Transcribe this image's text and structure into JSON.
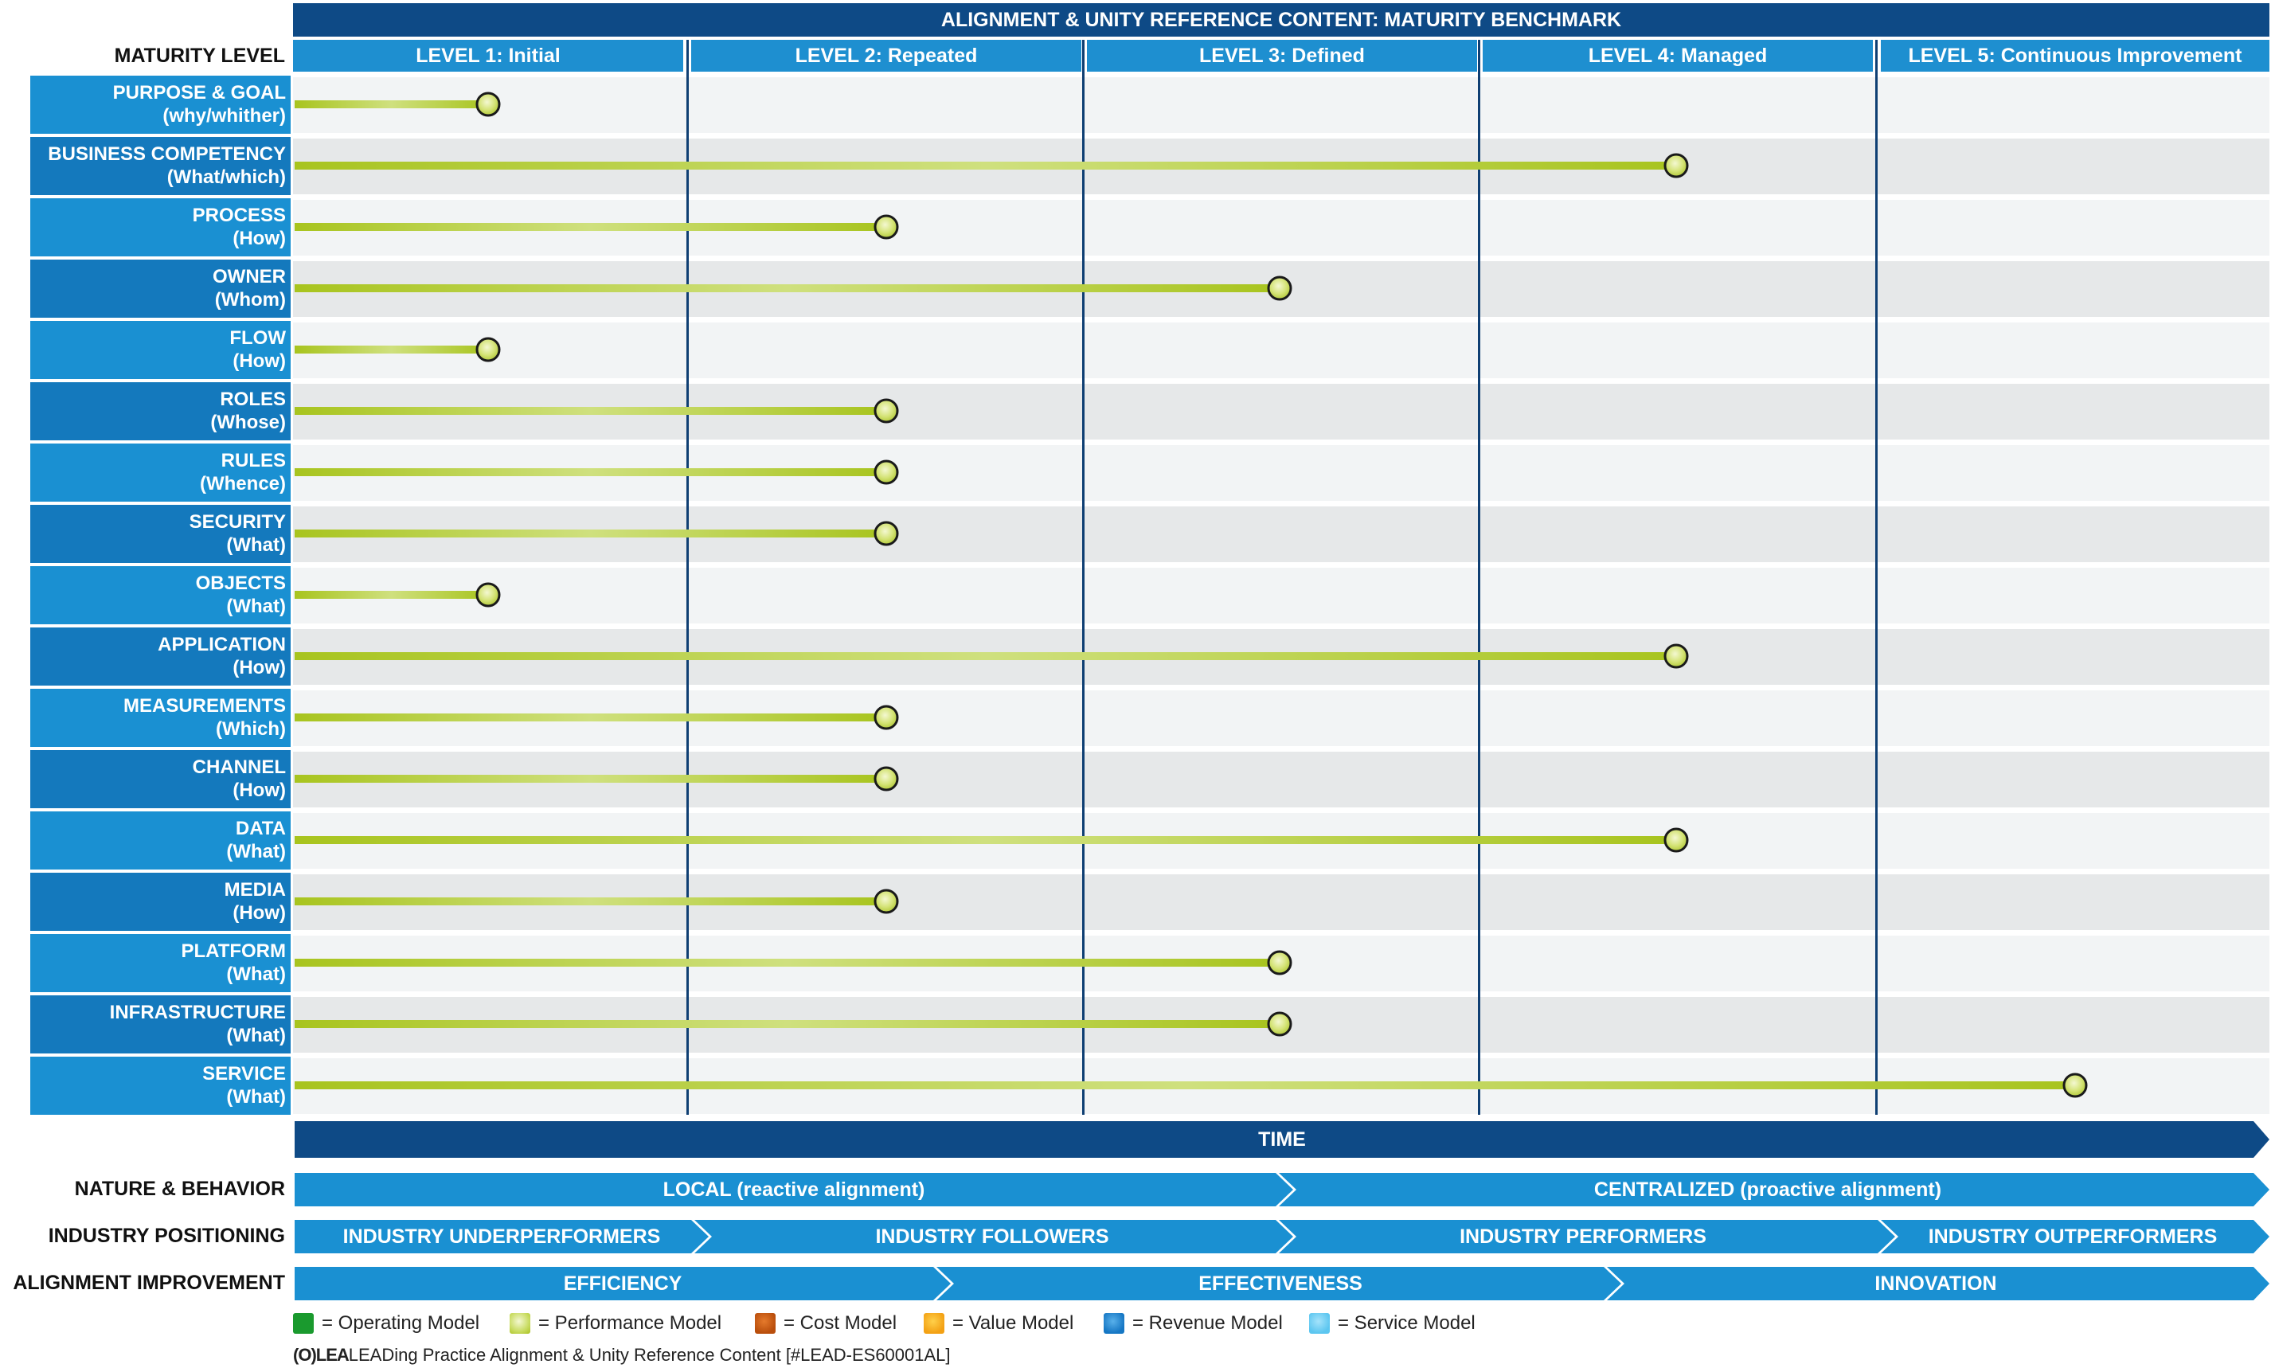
{
  "title": "ALIGNMENT & UNITY REFERENCE CONTENT: MATURITY BENCHMARK",
  "maturity_label": "MATURITY LEVEL",
  "levels": [
    "LEVEL 1: Initial",
    "LEVEL 2: Repeated",
    "LEVEL 3: Defined",
    "LEVEL 4: Managed",
    "LEVEL 5: Continuous Improvement"
  ],
  "rows": [
    {
      "name": "PURPOSE & GOAL",
      "sub": "(why/whither)",
      "level": 1
    },
    {
      "name": "BUSINESS COMPETENCY",
      "sub": "(What/which)",
      "level": 4
    },
    {
      "name": "PROCESS",
      "sub": "(How)",
      "level": 2
    },
    {
      "name": "OWNER",
      "sub": "(Whom)",
      "level": 3
    },
    {
      "name": "FLOW",
      "sub": "(How)",
      "level": 1
    },
    {
      "name": "ROLES",
      "sub": "(Whose)",
      "level": 2
    },
    {
      "name": "RULES",
      "sub": "(Whence)",
      "level": 2
    },
    {
      "name": "SECURITY",
      "sub": "(What)",
      "level": 2
    },
    {
      "name": "OBJECTS",
      "sub": "(What)",
      "level": 1
    },
    {
      "name": "APPLICATION",
      "sub": "(How)",
      "level": 4
    },
    {
      "name": "MEASUREMENTS",
      "sub": "(Which)",
      "level": 2
    },
    {
      "name": "CHANNEL",
      "sub": "(How)",
      "level": 2
    },
    {
      "name": "DATA",
      "sub": "(What)",
      "level": 4
    },
    {
      "name": "MEDIA",
      "sub": "(How)",
      "level": 2
    },
    {
      "name": "PLATFORM",
      "sub": "(What)",
      "level": 3
    },
    {
      "name": "INFRASTRUCTURE",
      "sub": "(What)",
      "level": 3
    },
    {
      "name": "SERVICE",
      "sub": "(What)",
      "level": 5
    }
  ],
  "time_label": "TIME",
  "nature": {
    "label": "NATURE & BEHAVIOR",
    "segments": [
      "LOCAL (reactive alignment)",
      "CENTRALIZED (proactive alignment)"
    ]
  },
  "industry": {
    "label": "INDUSTRY POSITIONING",
    "segments": [
      "INDUSTRY UNDERPERFORMERS",
      "INDUSTRY FOLLOWERS",
      "INDUSTRY PERFORMERS",
      "INDUSTRY OUTPERFORMERS"
    ]
  },
  "alignment": {
    "label": "ALIGNMENT IMPROVEMENT",
    "segments": [
      "EFFICIENCY",
      "EFFECTIVENESS",
      "INNOVATION"
    ]
  },
  "legend": [
    {
      "label": "= Operating Model",
      "color": "#1a9a2e"
    },
    {
      "label": "= Performance Model",
      "color": "#c9dc62"
    },
    {
      "label": "= Cost Model",
      "color": "#b94e0c"
    },
    {
      "label": "= Value Model",
      "color": "#f3a114"
    },
    {
      "label": "= Revenue Model",
      "color": "#1677c4"
    },
    {
      "label": "= Service Model",
      "color": "#5cc6f0"
    }
  ],
  "footer": "LEADing Practice Alignment & Unity Reference Content [#LEAD-ES60001AL]",
  "footer_logo": "(O)LEA",
  "colors": {
    "dark_blue": "#0e4a86",
    "mid_blue": "#1e8fd0",
    "label_blue_a": "#1a90d2",
    "label_blue_b": "#1479bd",
    "bar_green": "#a9c520"
  }
}
